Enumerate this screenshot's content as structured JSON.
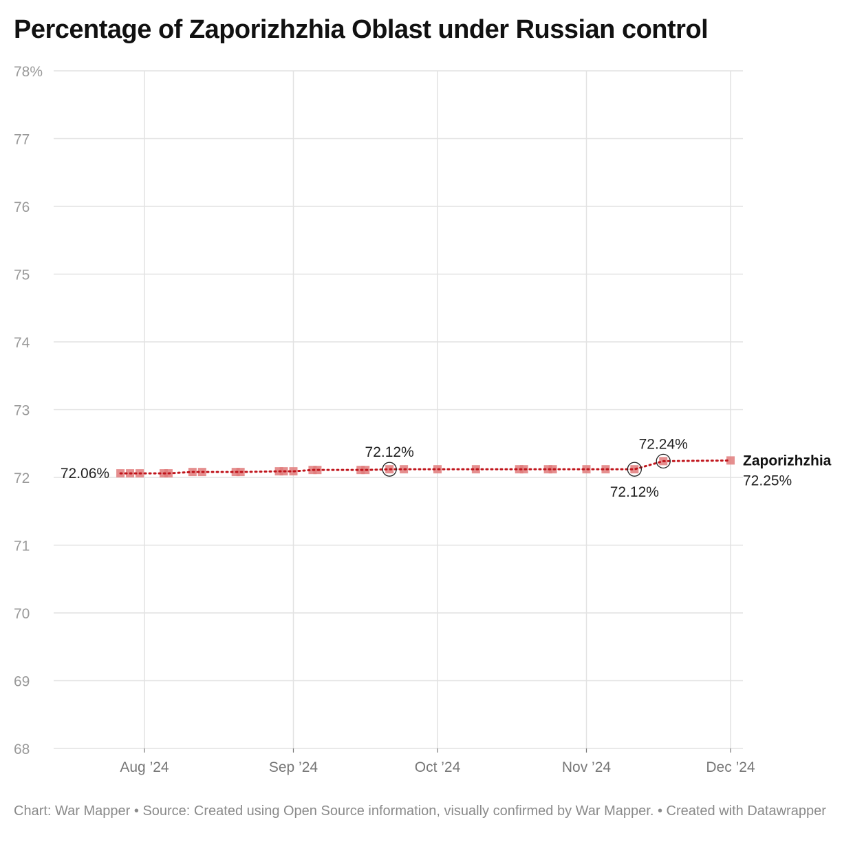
{
  "title": "Percentage of Zaporizhzhia Oblast under Russian control",
  "footer": {
    "chart_by": "Chart: War Mapper",
    "source": "Source: Created using Open Source information, visually confirmed by War Mapper.",
    "created_with": "Created with Datawrapper",
    "separator": " • "
  },
  "colors": {
    "line": "#c0151c",
    "marker": "#e07b7b",
    "grid": "#e2e2e2",
    "axis_text": "#999999",
    "tick_text": "#777777",
    "label_text": "#222222"
  },
  "chart_data": {
    "type": "line",
    "title": "Percentage of Zaporizhzhia Oblast under Russian control",
    "xlabel": "",
    "ylabel": "",
    "ylim": [
      68,
      78
    ],
    "y_ticks": [
      "68",
      "69",
      "70",
      "71",
      "72",
      "73",
      "74",
      "75",
      "76",
      "77",
      "78%"
    ],
    "x_ticks": [
      {
        "date": "2024-08-01",
        "label": "Aug ’24"
      },
      {
        "date": "2024-09-01",
        "label": "Sep ’24"
      },
      {
        "date": "2024-10-01",
        "label": "Oct ’24"
      },
      {
        "date": "2024-11-01",
        "label": "Nov ’24"
      },
      {
        "date": "2024-12-01",
        "label": "Dec ’24"
      }
    ],
    "grid": true,
    "series": [
      {
        "name": "Zaporizhzhia",
        "end_label": "Zaporizhzhia",
        "end_value_label": "72.25%",
        "x": [
          "2024-07-27",
          "2024-07-29",
          "2024-07-31",
          "2024-08-05",
          "2024-08-06",
          "2024-08-11",
          "2024-08-13",
          "2024-08-20",
          "2024-08-21",
          "2024-08-29",
          "2024-08-30",
          "2024-09-01",
          "2024-09-05",
          "2024-09-06",
          "2024-09-15",
          "2024-09-16",
          "2024-09-21",
          "2024-09-24",
          "2024-10-01",
          "2024-10-09",
          "2024-10-18",
          "2024-10-19",
          "2024-10-24",
          "2024-10-25",
          "2024-11-01",
          "2024-11-05",
          "2024-11-11",
          "2024-11-17",
          "2024-12-01"
        ],
        "y": [
          72.06,
          72.06,
          72.06,
          72.06,
          72.06,
          72.08,
          72.08,
          72.08,
          72.08,
          72.09,
          72.09,
          72.09,
          72.11,
          72.11,
          72.11,
          72.11,
          72.12,
          72.12,
          72.12,
          72.12,
          72.12,
          72.12,
          72.12,
          72.12,
          72.12,
          72.12,
          72.12,
          72.24,
          72.25
        ]
      }
    ],
    "annotations": [
      {
        "date": "2024-07-27",
        "value": 72.06,
        "text": "72.06%",
        "circled": false,
        "position": "left"
      },
      {
        "date": "2024-09-21",
        "value": 72.12,
        "text": "72.12%",
        "circled": true,
        "position": "above"
      },
      {
        "date": "2024-11-11",
        "value": 72.12,
        "text": "72.12%",
        "circled": true,
        "position": "below"
      },
      {
        "date": "2024-11-17",
        "value": 72.24,
        "text": "72.24%",
        "circled": true,
        "position": "above"
      }
    ]
  }
}
